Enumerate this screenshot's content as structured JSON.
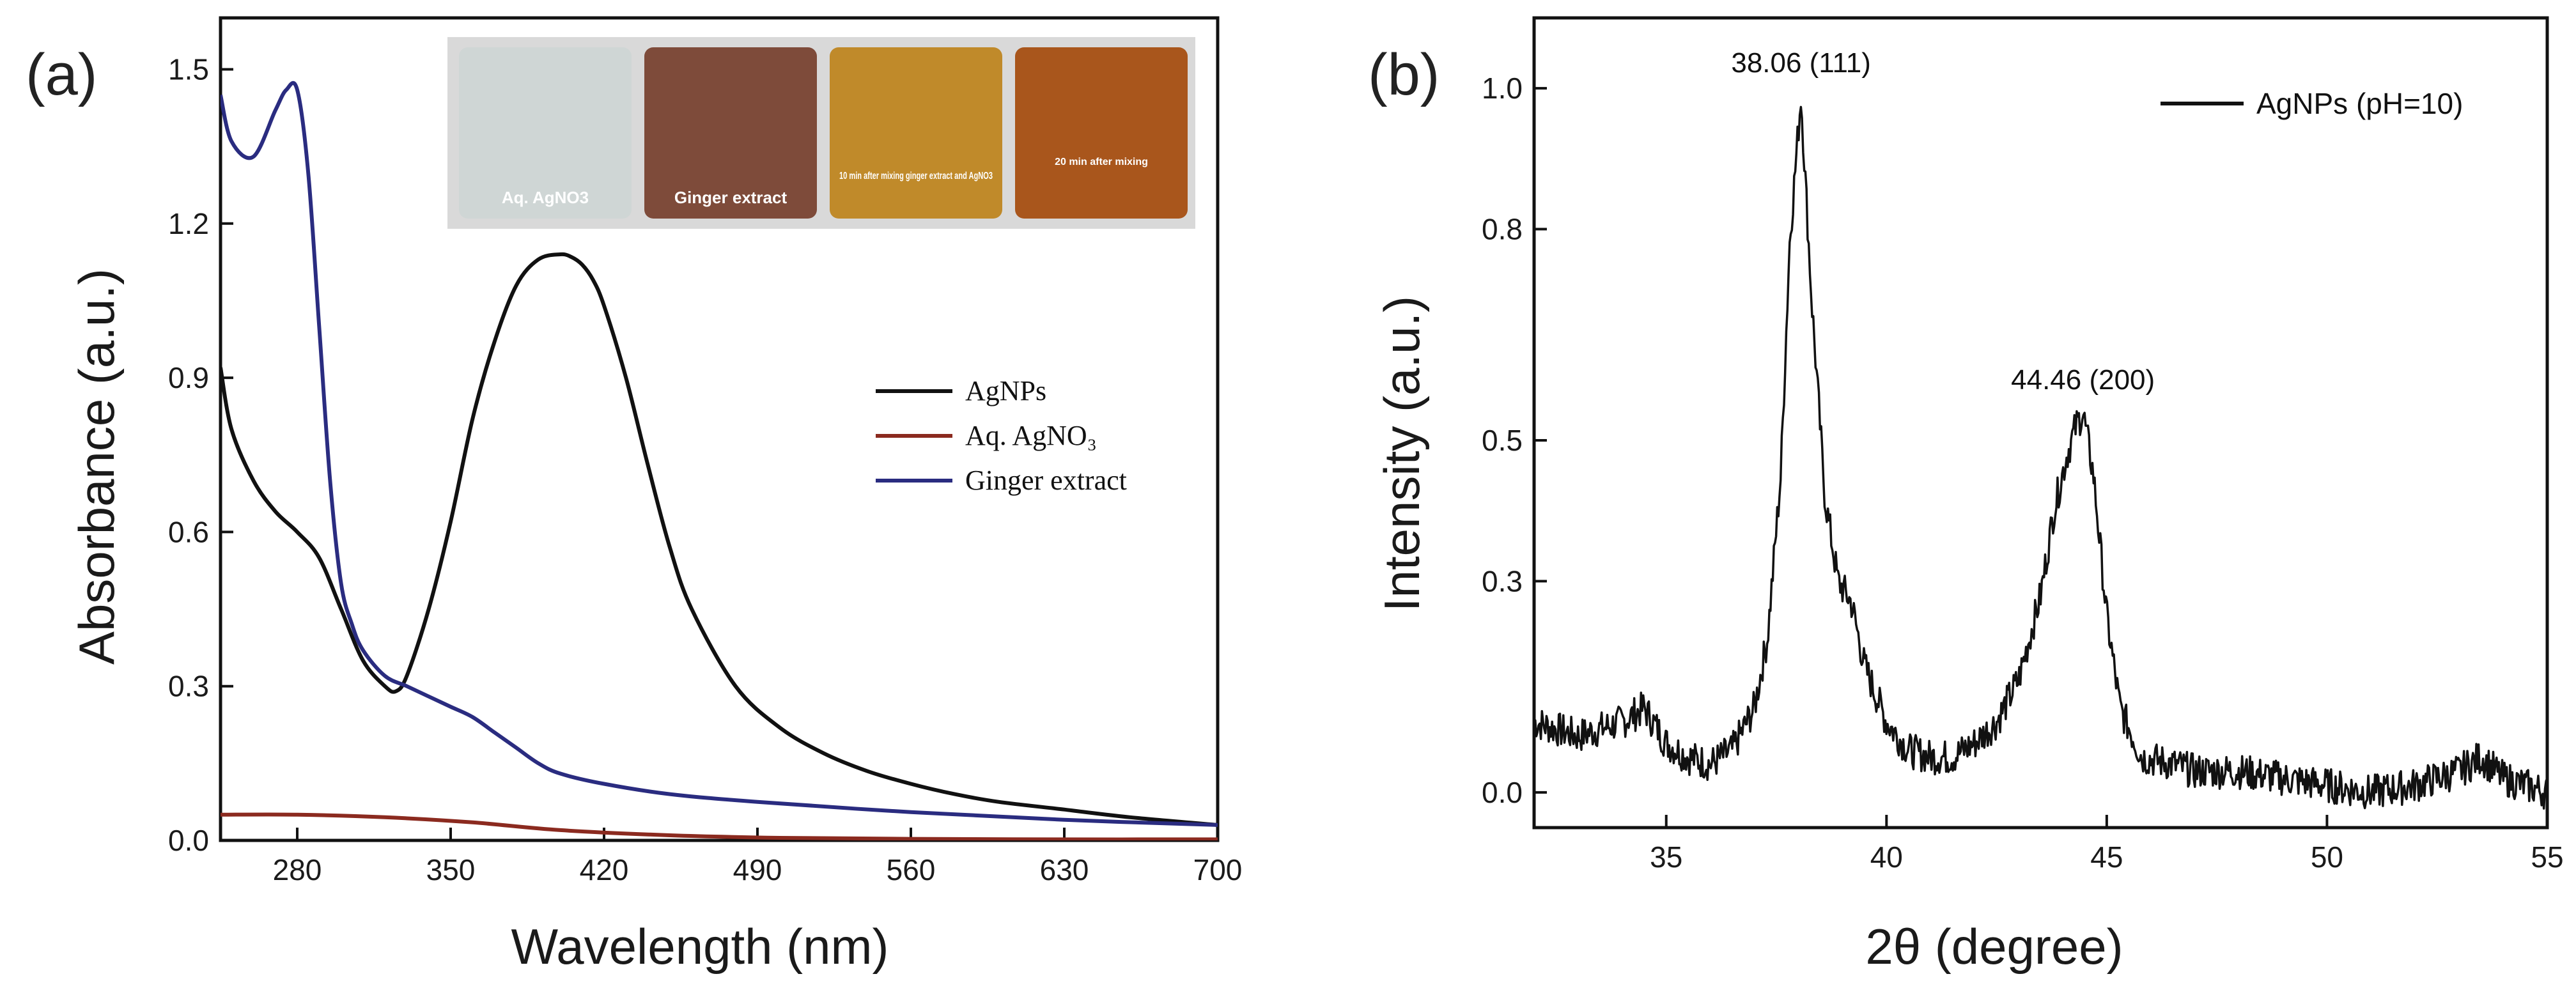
{
  "panels": {
    "a": "(a)",
    "b": "(b)"
  },
  "inset": {
    "vials": [
      {
        "label": "Aq. AgNO3",
        "color": "#cfd6d5"
      },
      {
        "label": "Ginger extract",
        "color": "#7e4b3a"
      },
      {
        "label": "10 min after mixing ginger extract and AgNO3",
        "color": "#c08a2a"
      },
      {
        "label": "20 min after mixing",
        "color": "#a9561c"
      }
    ]
  },
  "chart_data": [
    {
      "type": "line",
      "xlabel": "Wavelength (nm)",
      "ylabel": "Absorbance (a.u.)",
      "xlim": [
        245,
        700
      ],
      "ylim": [
        0.0,
        1.6
      ],
      "xticks": [
        280,
        350,
        420,
        490,
        560,
        630,
        700
      ],
      "xtick_labels": [
        "280",
        "350",
        "420",
        "490",
        "560",
        "630",
        "700"
      ],
      "yticks": [
        0.0,
        0.3,
        0.6,
        0.9,
        1.2,
        1.5
      ],
      "ytick_labels": [
        "0.0",
        "0.3",
        "0.6",
        "0.9",
        "1.2",
        "1.5"
      ],
      "legend_position": "right-middle",
      "series": [
        {
          "name": "AgNPs",
          "color": "#111111",
          "x": [
            245,
            250,
            260,
            270,
            280,
            290,
            300,
            310,
            320,
            325,
            330,
            340,
            350,
            360,
            370,
            380,
            390,
            400,
            405,
            410,
            415,
            420,
            430,
            440,
            450,
            460,
            480,
            500,
            520,
            540,
            560,
            580,
            600,
            630,
            660,
            700
          ],
          "y": [
            0.92,
            0.8,
            0.7,
            0.64,
            0.6,
            0.55,
            0.45,
            0.35,
            0.3,
            0.29,
            0.32,
            0.45,
            0.62,
            0.82,
            0.97,
            1.08,
            1.13,
            1.14,
            1.135,
            1.12,
            1.09,
            1.04,
            0.9,
            0.73,
            0.57,
            0.45,
            0.3,
            0.22,
            0.17,
            0.135,
            0.11,
            0.09,
            0.075,
            0.06,
            0.045,
            0.03
          ]
        },
        {
          "name": "Aq. AgNO₃",
          "color": "#8b2a1f",
          "x": [
            245,
            280,
            320,
            360,
            400,
            450,
            500,
            560,
            630,
            700
          ],
          "y": [
            0.05,
            0.05,
            0.045,
            0.035,
            0.02,
            0.01,
            0.005,
            0.003,
            0.002,
            0.002
          ]
        },
        {
          "name": "Ginger extract",
          "color": "#2a2c80",
          "x": [
            245,
            250,
            260,
            270,
            275,
            280,
            285,
            290,
            295,
            300,
            305,
            310,
            320,
            330,
            340,
            350,
            360,
            370,
            380,
            390,
            400,
            420,
            450,
            490,
            560,
            630,
            700
          ],
          "y": [
            1.45,
            1.36,
            1.33,
            1.42,
            1.46,
            1.46,
            1.3,
            1.0,
            0.7,
            0.5,
            0.42,
            0.37,
            0.32,
            0.3,
            0.28,
            0.26,
            0.24,
            0.21,
            0.18,
            0.15,
            0.13,
            0.11,
            0.09,
            0.075,
            0.055,
            0.04,
            0.03
          ]
        }
      ]
    },
    {
      "type": "line",
      "xlabel": "2θ (degree)",
      "ylabel": "Intensity (a.u.)",
      "xlim": [
        32,
        55
      ],
      "ylim": [
        -0.05,
        1.1
      ],
      "xticks": [
        35,
        40,
        45,
        50,
        55
      ],
      "xtick_labels": [
        "35",
        "40",
        "45",
        "50",
        "55"
      ],
      "yticks": [
        0.0,
        0.3,
        0.5,
        0.8,
        1.0
      ],
      "ytick_labels": [
        "0.0",
        "0.3",
        "0.5",
        "0.8",
        "1.0"
      ],
      "legend_position": "top-right",
      "series": [
        {
          "name": "AgNPs (pH=10)",
          "color": "#111111",
          "x": [
            32,
            33,
            34,
            34.5,
            35,
            35.5,
            36,
            36.5,
            37,
            37.3,
            37.6,
            37.8,
            38.06,
            38.3,
            38.6,
            38.9,
            39.2,
            39.5,
            40,
            40.5,
            41,
            41.5,
            42,
            42.5,
            43,
            43.5,
            43.8,
            44.1,
            44.3,
            44.46,
            44.7,
            45,
            45.3,
            45.8,
            46.5,
            47,
            48,
            49,
            50,
            51,
            52,
            53,
            53.5,
            54,
            55
          ],
          "y": [
            0.1,
            0.08,
            0.1,
            0.12,
            0.07,
            0.05,
            0.04,
            0.06,
            0.12,
            0.22,
            0.45,
            0.78,
            0.99,
            0.7,
            0.42,
            0.3,
            0.27,
            0.18,
            0.1,
            0.06,
            0.05,
            0.05,
            0.07,
            0.1,
            0.16,
            0.28,
            0.4,
            0.48,
            0.52,
            0.54,
            0.45,
            0.25,
            0.12,
            0.05,
            0.04,
            0.03,
            0.03,
            0.02,
            0.01,
            0.0,
            0.01,
            0.03,
            0.05,
            0.02,
            0.0
          ],
          "noise": 0.025
        }
      ],
      "annotations": [
        {
          "text": "38.06 (111)",
          "x": 38.06,
          "y": 0.99
        },
        {
          "text": "44.46 (200)",
          "x": 44.46,
          "y": 0.54
        }
      ]
    }
  ]
}
